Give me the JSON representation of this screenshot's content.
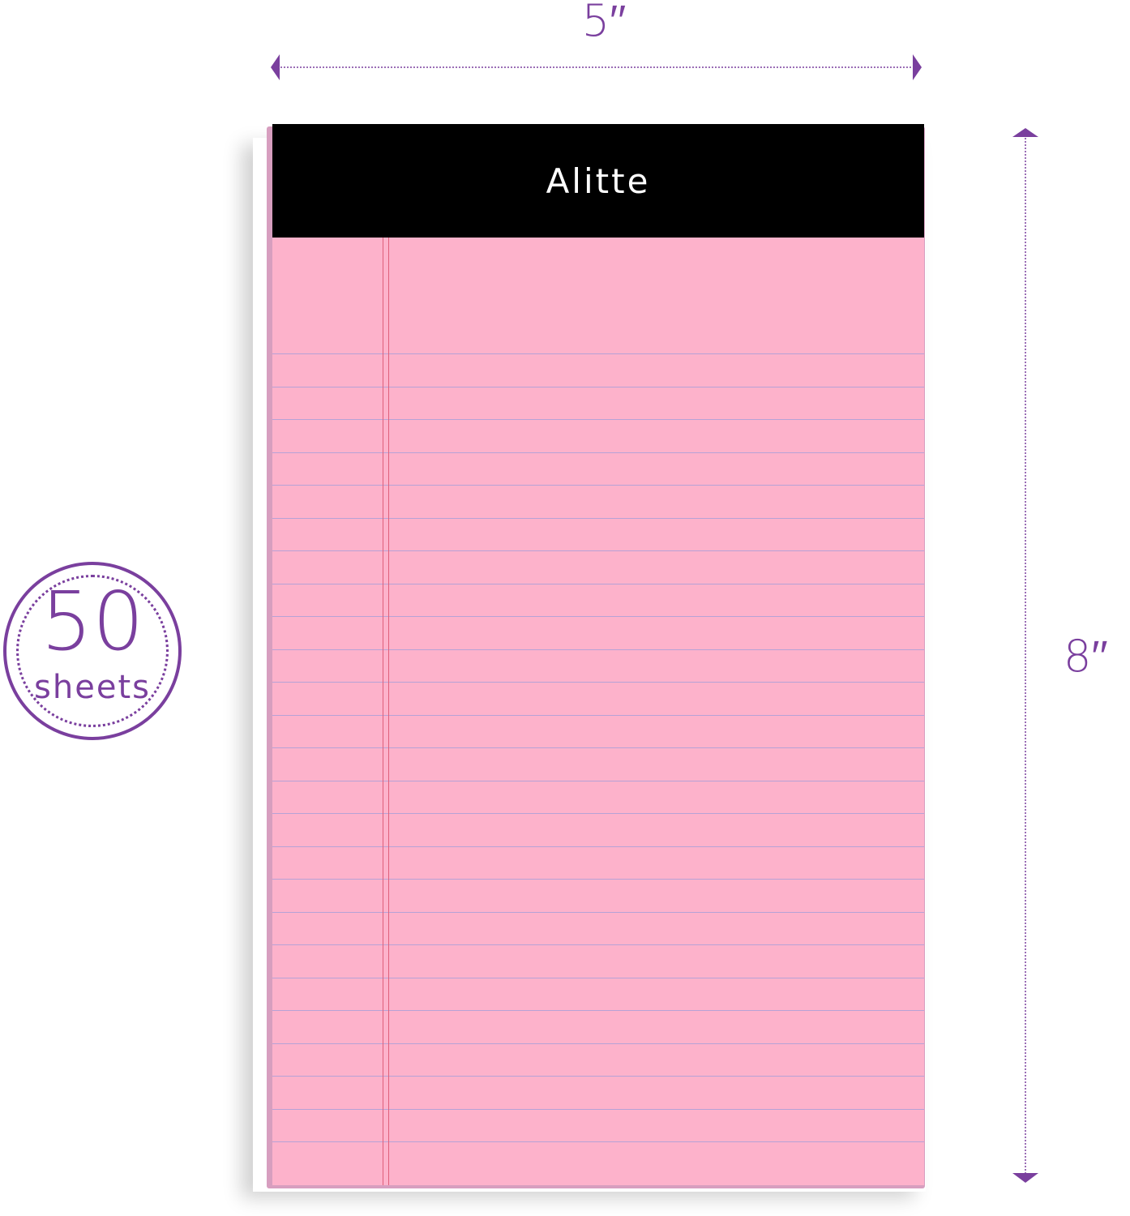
{
  "dimensions": {
    "width_label": "5′′",
    "height_label": "8′′"
  },
  "notepad": {
    "brand": "Alitte",
    "ruled_lines": 25,
    "paper_color": "#fdb2cb",
    "header_color": "#000000",
    "rule_color": "#b6a2d6",
    "margin_color": "#e0607a"
  },
  "badge": {
    "count": "50",
    "unit": "sheets"
  },
  "colors": {
    "accent": "#7a3f9e"
  }
}
